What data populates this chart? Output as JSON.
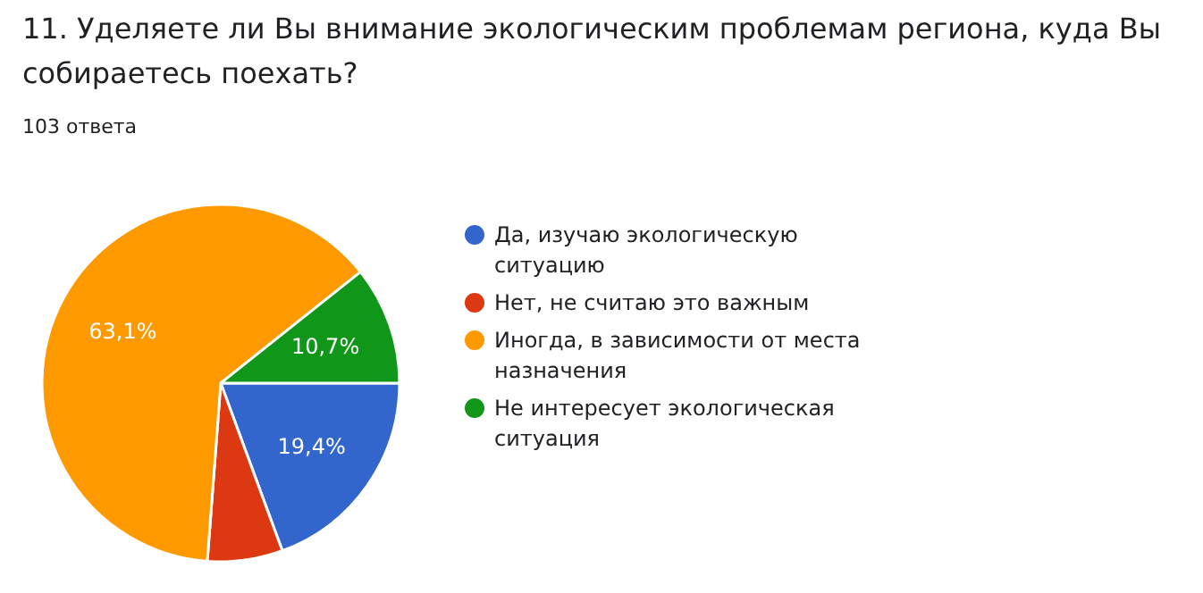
{
  "chart_data": {
    "type": "pie",
    "title": "11. Уделяете ли Вы внимание экологическим проблемам региона, куда Вы собираетесь поехать?",
    "subtitle": "103 ответа",
    "categories": [
      "Да, изучаю экологическую ситуацию",
      "Нет, не считаю это важным",
      "Иногда, в зависимости от места назначения",
      "Не интересует экологическая ситуация"
    ],
    "values": [
      19.4,
      6.8,
      63.1,
      10.7
    ],
    "colors": [
      "#3366cc",
      "#dc3912",
      "#ff9900",
      "#109618"
    ],
    "value_labels": [
      "19,4%",
      null,
      "63,1%",
      "10,7%"
    ],
    "legend": "right"
  }
}
